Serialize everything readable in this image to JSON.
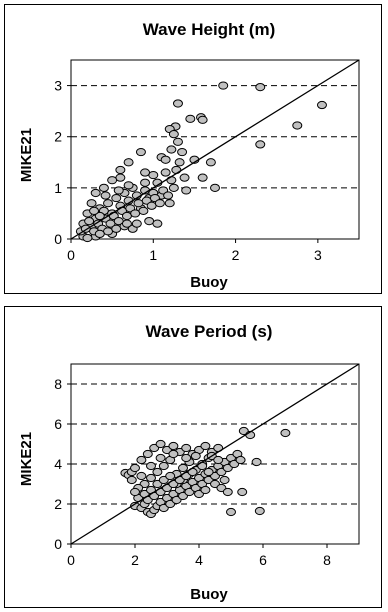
{
  "chart_data": [
    {
      "type": "scatter",
      "title": "Wave Height (m)",
      "xlabel": "Buoy",
      "ylabel": "MIKE21",
      "xlim": [
        0,
        3.5
      ],
      "ylim": [
        0,
        3.5
      ],
      "xticks": [
        "0",
        "1",
        "2",
        "3"
      ],
      "yticks": [
        "0",
        "1",
        "2",
        "3"
      ],
      "grid": "horizontal-dashed",
      "reference_line": {
        "x": [
          0,
          3.5
        ],
        "y": [
          0,
          3.5
        ]
      },
      "point_color": "#c0c0c0",
      "series": [
        {
          "points": [
            [
              1.85,
              3.0
            ],
            [
              2.3,
              2.97
            ],
            [
              3.05,
              2.62
            ],
            [
              2.75,
              2.22
            ],
            [
              2.3,
              1.85
            ],
            [
              1.45,
              2.35
            ],
            [
              1.58,
              2.38
            ],
            [
              1.6,
              2.33
            ],
            [
              1.3,
              2.65
            ],
            [
              1.27,
              2.2
            ],
            [
              1.2,
              2.15
            ],
            [
              1.25,
              2.05
            ],
            [
              1.5,
              1.55
            ],
            [
              1.7,
              1.5
            ],
            [
              1.35,
              1.7
            ],
            [
              1.1,
              1.6
            ],
            [
              0.85,
              1.7
            ],
            [
              0.7,
              1.5
            ],
            [
              0.6,
              1.2
            ],
            [
              1.0,
              1.25
            ],
            [
              1.25,
              1.0
            ],
            [
              1.4,
              0.95
            ],
            [
              1.6,
              1.2
            ],
            [
              1.75,
              1.0
            ],
            [
              0.9,
              0.95
            ],
            [
              0.95,
              0.35
            ],
            [
              1.05,
              0.3
            ],
            [
              0.75,
              0.2
            ],
            [
              0.5,
              0.1
            ],
            [
              0.3,
              0.05
            ],
            [
              0.15,
              0.05
            ],
            [
              0.2,
              0.02
            ],
            [
              0.25,
              0.25
            ],
            [
              0.3,
              0.4
            ],
            [
              0.35,
              0.6
            ],
            [
              0.4,
              0.55
            ],
            [
              0.45,
              0.7
            ],
            [
              0.5,
              0.5
            ],
            [
              0.55,
              0.8
            ],
            [
              0.6,
              0.65
            ],
            [
              0.65,
              0.9
            ],
            [
              0.7,
              0.75
            ],
            [
              0.75,
              1.0
            ],
            [
              0.8,
              0.85
            ],
            [
              0.85,
              0.6
            ],
            [
              0.9,
              1.1
            ],
            [
              0.95,
              0.8
            ],
            [
              1.0,
              0.9
            ],
            [
              1.05,
              1.1
            ],
            [
              1.1,
              0.85
            ],
            [
              1.15,
              1.3
            ],
            [
              1.2,
              0.7
            ],
            [
              0.3,
              0.9
            ],
            [
              0.25,
              0.7
            ],
            [
              0.2,
              0.5
            ],
            [
              0.15,
              0.3
            ],
            [
              0.12,
              0.15
            ],
            [
              0.18,
              0.2
            ],
            [
              0.22,
              0.35
            ],
            [
              0.28,
              0.15
            ],
            [
              0.33,
              0.3
            ],
            [
              0.38,
              0.2
            ],
            [
              0.42,
              0.4
            ],
            [
              0.48,
              0.3
            ],
            [
              0.52,
              0.45
            ],
            [
              0.58,
              0.35
            ],
            [
              0.62,
              0.55
            ],
            [
              0.68,
              0.45
            ],
            [
              0.72,
              0.6
            ],
            [
              0.78,
              0.5
            ],
            [
              0.82,
              0.7
            ],
            [
              0.88,
              0.55
            ],
            [
              0.92,
              0.75
            ],
            [
              0.98,
              0.65
            ],
            [
              1.02,
              0.8
            ],
            [
              1.08,
              0.7
            ],
            [
              1.12,
              0.95
            ],
            [
              1.18,
              0.85
            ],
            [
              1.22,
              1.15
            ],
            [
              1.28,
              1.35
            ],
            [
              1.32,
              1.5
            ],
            [
              1.38,
              1.2
            ],
            [
              0.4,
              1.0
            ],
            [
              0.5,
              1.15
            ],
            [
              0.6,
              1.35
            ],
            [
              0.45,
              0.15
            ],
            [
              0.55,
              0.2
            ],
            [
              0.65,
              0.25
            ],
            [
              0.35,
              0.1
            ],
            [
              0.8,
              0.3
            ],
            [
              0.7,
              1.05
            ],
            [
              0.9,
              1.3
            ],
            [
              1.15,
              1.55
            ],
            [
              1.3,
              1.9
            ],
            [
              1.22,
              1.75
            ],
            [
              0.35,
              0.45
            ],
            [
              0.28,
              0.55
            ],
            [
              0.42,
              0.85
            ],
            [
              0.58,
              0.95
            ],
            [
              0.68,
              0.3
            ]
          ]
        }
      ]
    },
    {
      "type": "scatter",
      "title": "Wave Period (s)",
      "xlabel": "Buoy",
      "ylabel": "MIKE21",
      "xlim": [
        0,
        9
      ],
      "ylim": [
        0,
        9
      ],
      "xticks": [
        "0",
        "2",
        "4",
        "6",
        "8"
      ],
      "yticks": [
        "0",
        "2",
        "4",
        "6",
        "8"
      ],
      "grid": "horizontal-dashed",
      "reference_line": {
        "x": [
          0,
          9
        ],
        "y": [
          0,
          9
        ]
      },
      "point_color": "#c0c0c0",
      "series": [
        {
          "points": [
            [
              6.7,
              5.55
            ],
            [
              5.4,
              5.65
            ],
            [
              5.6,
              5.45
            ],
            [
              5.8,
              4.1
            ],
            [
              5.9,
              1.65
            ],
            [
              5.35,
              2.6
            ],
            [
              5.0,
              1.6
            ],
            [
              4.8,
              3.2
            ],
            [
              1.7,
              3.55
            ],
            [
              1.8,
              3.45
            ],
            [
              1.9,
              3.6
            ],
            [
              2.0,
              3.8
            ],
            [
              2.1,
              2.3
            ],
            [
              2.0,
              1.9
            ],
            [
              2.2,
              1.8
            ],
            [
              2.3,
              2.0
            ],
            [
              2.4,
              1.6
            ],
            [
              2.5,
              1.5
            ],
            [
              2.6,
              1.7
            ],
            [
              2.7,
              1.9
            ],
            [
              2.8,
              2.1
            ],
            [
              2.9,
              1.8
            ],
            [
              3.0,
              2.3
            ],
            [
              3.1,
              2.0
            ],
            [
              3.2,
              2.5
            ],
            [
              3.3,
              2.2
            ],
            [
              3.4,
              2.7
            ],
            [
              3.5,
              2.4
            ],
            [
              3.6,
              2.9
            ],
            [
              3.7,
              2.6
            ],
            [
              3.8,
              3.1
            ],
            [
              3.9,
              2.8
            ],
            [
              4.0,
              3.3
            ],
            [
              4.1,
              3.0
            ],
            [
              4.2,
              3.5
            ],
            [
              4.3,
              3.2
            ],
            [
              4.4,
              3.7
            ],
            [
              4.5,
              3.4
            ],
            [
              4.6,
              3.9
            ],
            [
              4.7,
              3.6
            ],
            [
              4.8,
              4.1
            ],
            [
              4.9,
              3.8
            ],
            [
              5.0,
              4.3
            ],
            [
              5.1,
              4.0
            ],
            [
              5.2,
              4.5
            ],
            [
              5.3,
              4.2
            ],
            [
              2.2,
              4.2
            ],
            [
              2.4,
              4.5
            ],
            [
              2.6,
              4.8
            ],
            [
              2.8,
              5.0
            ],
            [
              3.0,
              4.7
            ],
            [
              3.2,
              4.9
            ],
            [
              3.4,
              4.6
            ],
            [
              3.6,
              4.8
            ],
            [
              3.8,
              4.5
            ],
            [
              4.0,
              4.7
            ],
            [
              4.2,
              4.9
            ],
            [
              4.4,
              4.6
            ],
            [
              4.6,
              4.8
            ],
            [
              2.3,
              3.0
            ],
            [
              2.5,
              3.3
            ],
            [
              2.7,
              3.6
            ],
            [
              2.9,
              3.9
            ],
            [
              3.1,
              4.2
            ],
            [
              3.3,
              3.5
            ],
            [
              3.5,
              3.8
            ],
            [
              3.7,
              4.1
            ],
            [
              3.9,
              4.4
            ],
            [
              4.1,
              4.0
            ],
            [
              4.3,
              4.3
            ],
            [
              2.1,
              2.8
            ],
            [
              2.3,
              2.5
            ],
            [
              2.5,
              2.7
            ],
            [
              2.7,
              3.0
            ],
            [
              2.9,
              3.2
            ],
            [
              3.1,
              3.4
            ],
            [
              3.3,
              3.0
            ],
            [
              3.5,
              3.2
            ],
            [
              3.7,
              3.5
            ],
            [
              3.9,
              3.7
            ],
            [
              4.1,
              3.9
            ],
            [
              4.3,
              3.6
            ],
            [
              4.5,
              3.0
            ],
            [
              4.7,
              2.8
            ],
            [
              4.9,
              2.6
            ],
            [
              2.4,
              2.2
            ],
            [
              2.6,
              2.4
            ],
            [
              2.8,
              2.6
            ],
            [
              3.0,
              2.8
            ],
            [
              3.2,
              3.0
            ],
            [
              3.4,
              3.2
            ],
            [
              3.6,
              3.4
            ],
            [
              3.8,
              3.6
            ],
            [
              4.0,
              2.5
            ],
            [
              4.2,
              2.7
            ],
            [
              1.9,
              3.2
            ],
            [
              2.0,
              2.6
            ],
            [
              2.2,
              3.4
            ],
            [
              2.5,
              3.9
            ],
            [
              2.8,
              4.3
            ],
            [
              3.2,
              4.5
            ],
            [
              3.6,
              4.3
            ],
            [
              4.4,
              4.4
            ],
            [
              4.6,
              4.2
            ]
          ]
        }
      ]
    }
  ]
}
